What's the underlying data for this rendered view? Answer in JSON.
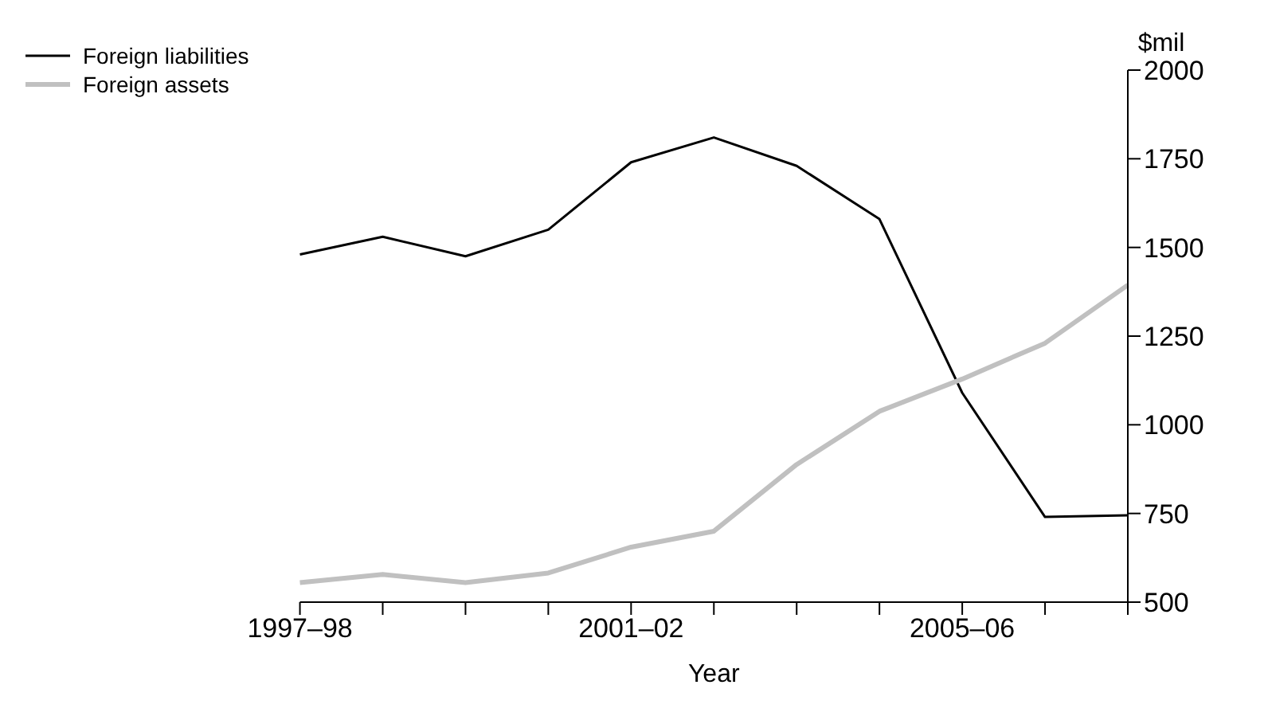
{
  "chart_data": {
    "type": "line",
    "xlabel": "Year",
    "ylabel": "$mil",
    "categories": [
      "1997–98",
      null,
      null,
      null,
      "2001–02",
      null,
      null,
      null,
      "2005–06",
      null,
      null
    ],
    "series": [
      {
        "name": "Foreign liabilities",
        "color": "#000000",
        "values": [
          1480,
          1530,
          1475,
          1550,
          1740,
          1810,
          1730,
          1580,
          1090,
          740,
          745
        ]
      },
      {
        "name": "Foreign assets",
        "color": "#c0c0c0",
        "values": [
          555,
          578,
          555,
          582,
          655,
          700,
          888,
          1038,
          1129,
          1230,
          1394
        ]
      }
    ],
    "ylim": [
      500,
      2000
    ],
    "yticks": [
      500,
      750,
      1000,
      1250,
      1500,
      1750,
      2000
    ],
    "grid": false,
    "legend": "top left",
    "marker": "none",
    "line_style": "solid"
  }
}
